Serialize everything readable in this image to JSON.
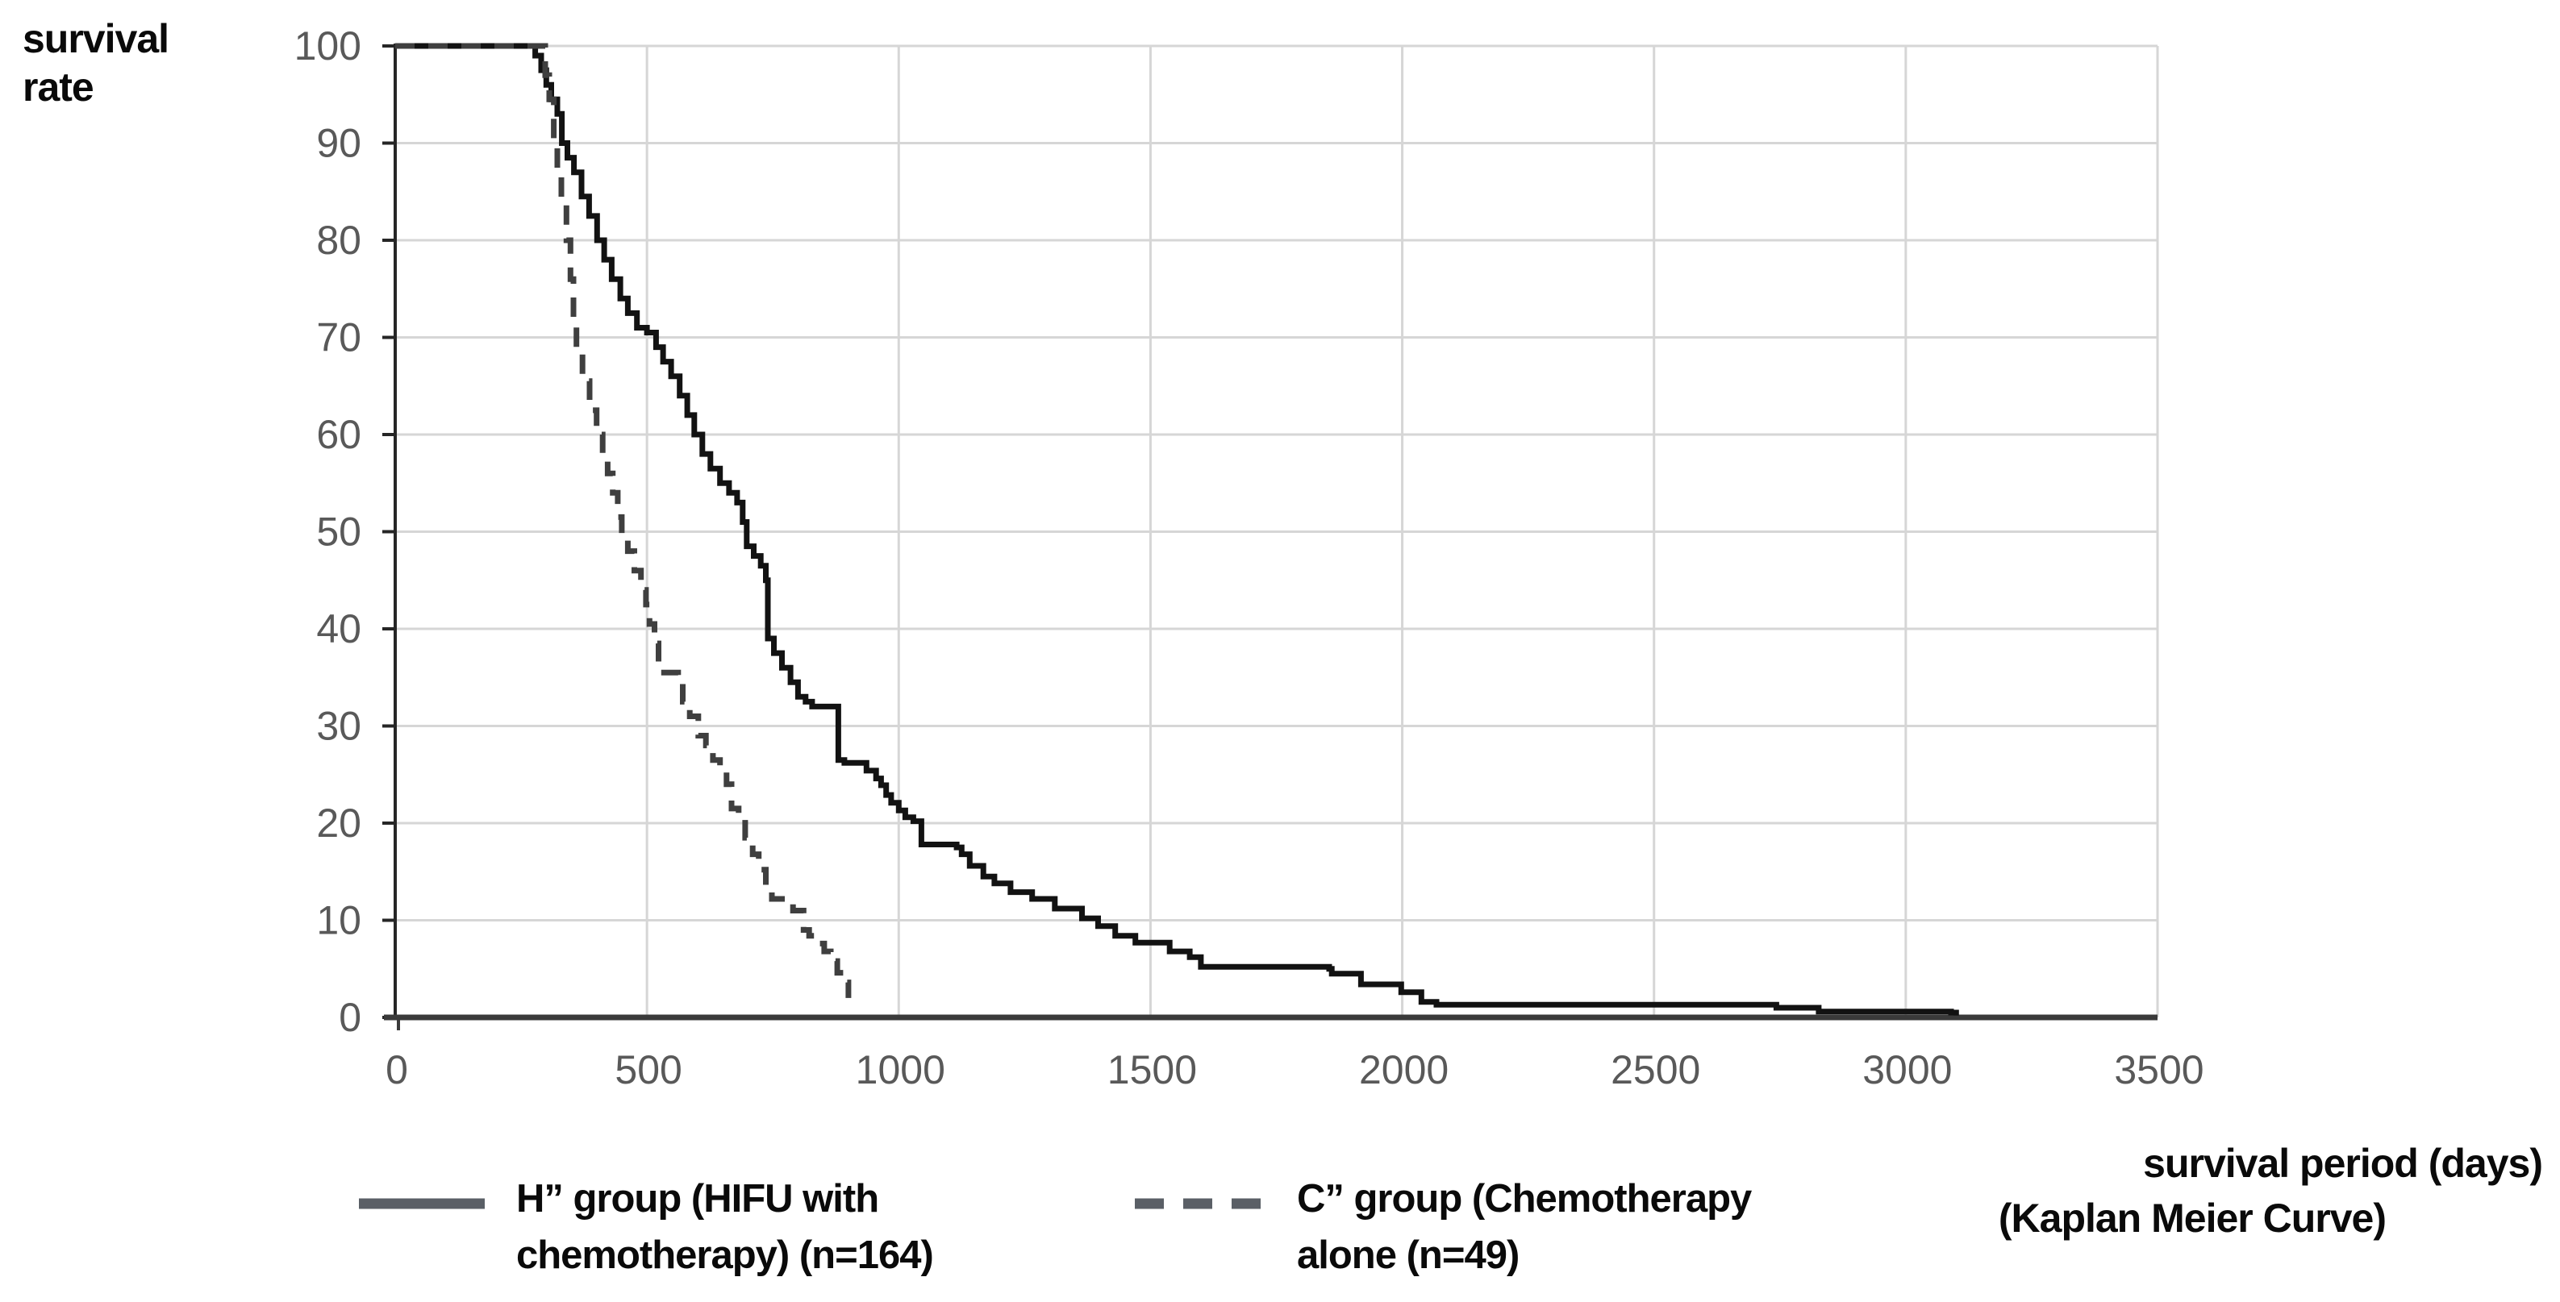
{
  "colors": {
    "background": "#ffffff",
    "grid": "#d6d6d6",
    "y_axis_line": "#262626",
    "x_axis_line": "#3a3a3a",
    "tick_label": "#595959",
    "text": "#0a0a0a",
    "legend_swatch": "#5a5f66"
  },
  "chart_data": {
    "type": "line",
    "subtype": "kaplan-meier-step",
    "title": "",
    "ylabel": "survival rate",
    "xlabel": "survival period (days)",
    "xlabel_sub": "(Kaplan Meier Curve)",
    "xlim": [
      0,
      3500
    ],
    "ylim": [
      0,
      100
    ],
    "x_ticks": [
      0,
      500,
      1000,
      1500,
      2000,
      2500,
      3000,
      3500
    ],
    "y_ticks": [
      0,
      10,
      20,
      30,
      40,
      50,
      60,
      70,
      80,
      90,
      100
    ],
    "grid": true,
    "legend_position": "bottom",
    "series": [
      {
        "name": "H” group (HIFU with chemotherapy) (n=164)",
        "legend_lines": [
          "H” group (HIFU with",
          "chemotherapy) (n=164)"
        ],
        "style": "solid",
        "color": "#121212",
        "stroke_width": 7,
        "points": [
          [
            0,
            100
          ],
          [
            270,
            100
          ],
          [
            278,
            99
          ],
          [
            290,
            97.5
          ],
          [
            300,
            96
          ],
          [
            310,
            94.5
          ],
          [
            322,
            93
          ],
          [
            331,
            90
          ],
          [
            342,
            88.5
          ],
          [
            355,
            87
          ],
          [
            370,
            84.5
          ],
          [
            385,
            82.5
          ],
          [
            401,
            80
          ],
          [
            415,
            78
          ],
          [
            430,
            76
          ],
          [
            447,
            74
          ],
          [
            462,
            72.5
          ],
          [
            480,
            71
          ],
          [
            500,
            70.5
          ],
          [
            518,
            69
          ],
          [
            532,
            67.5
          ],
          [
            548,
            66
          ],
          [
            565,
            64
          ],
          [
            580,
            62
          ],
          [
            594,
            60
          ],
          [
            610,
            58
          ],
          [
            626,
            56.5
          ],
          [
            645,
            55
          ],
          [
            663,
            54
          ],
          [
            679,
            53
          ],
          [
            690,
            51
          ],
          [
            698,
            48.5
          ],
          [
            712,
            47.5
          ],
          [
            726,
            46.5
          ],
          [
            736,
            45
          ],
          [
            740,
            39
          ],
          [
            752,
            37.5
          ],
          [
            768,
            36
          ],
          [
            785,
            34.5
          ],
          [
            800,
            33
          ],
          [
            815,
            32.5
          ],
          [
            828,
            32
          ],
          [
            880,
            26.5
          ],
          [
            892,
            26.2
          ],
          [
            936,
            25.4
          ],
          [
            955,
            24.6
          ],
          [
            965,
            23.9
          ],
          [
            975,
            22.9
          ],
          [
            985,
            22.1
          ],
          [
            1000,
            21.3
          ],
          [
            1013,
            20.6
          ],
          [
            1029,
            20.2
          ],
          [
            1045,
            17.8
          ],
          [
            1115,
            17.5
          ],
          [
            1125,
            16.8
          ],
          [
            1141,
            15.6
          ],
          [
            1168,
            14.5
          ],
          [
            1190,
            13.8
          ],
          [
            1222,
            12.9
          ],
          [
            1265,
            12.2
          ],
          [
            1310,
            11.2
          ],
          [
            1364,
            10.2
          ],
          [
            1396,
            9.4
          ],
          [
            1430,
            8.4
          ],
          [
            1470,
            7.7
          ],
          [
            1538,
            6.8
          ],
          [
            1578,
            6.2
          ],
          [
            1600,
            5.2
          ],
          [
            1855,
            5
          ],
          [
            1860,
            4.5
          ],
          [
            1918,
            3.4
          ],
          [
            1998,
            2.6
          ],
          [
            2038,
            1.6
          ],
          [
            2068,
            1.3
          ],
          [
            2743,
            1
          ],
          [
            2827,
            0.6
          ],
          [
            3090,
            0.5
          ],
          [
            3100,
            0.2
          ]
        ]
      },
      {
        "name": "C” group (Chemotherapy alone (n=49)",
        "legend_lines": [
          "C” group (Chemotherapy",
          "alone (n=49)"
        ],
        "style": "dashed",
        "color": "#3f3f3f",
        "stroke_width": 7,
        "dash_pattern": [
          24,
          17
        ],
        "points": [
          [
            0,
            100
          ],
          [
            290,
            100
          ],
          [
            298,
            97
          ],
          [
            306,
            94.5
          ],
          [
            315,
            90.5
          ],
          [
            322,
            87
          ],
          [
            330,
            84
          ],
          [
            340,
            80
          ],
          [
            348,
            76
          ],
          [
            354,
            72
          ],
          [
            360,
            68.5
          ],
          [
            372,
            65.5
          ],
          [
            386,
            62.5
          ],
          [
            400,
            60
          ],
          [
            412,
            58
          ],
          [
            422,
            56
          ],
          [
            432,
            54
          ],
          [
            442,
            51.5
          ],
          [
            450,
            49.5
          ],
          [
            462,
            48
          ],
          [
            475,
            46
          ],
          [
            488,
            44
          ],
          [
            498,
            42.5
          ],
          [
            505,
            40.5
          ],
          [
            515,
            38.5
          ],
          [
            523,
            35.5
          ],
          [
            562,
            34.5
          ],
          [
            571,
            32.5
          ],
          [
            585,
            31
          ],
          [
            602,
            29
          ],
          [
            617,
            28
          ],
          [
            631,
            26.5
          ],
          [
            645,
            25.5
          ],
          [
            658,
            24
          ],
          [
            668,
            21.5
          ],
          [
            682,
            20.5
          ],
          [
            695,
            18.5
          ],
          [
            710,
            16.8
          ],
          [
            722,
            15.2
          ],
          [
            736,
            13.5
          ],
          [
            748,
            12.2
          ],
          [
            790,
            11
          ],
          [
            811,
            9
          ],
          [
            822,
            8.4
          ],
          [
            838,
            7.6
          ],
          [
            852,
            6.8
          ],
          [
            865,
            5.8
          ],
          [
            878,
            4.6
          ],
          [
            890,
            3.6
          ],
          [
            900,
            2
          ]
        ]
      }
    ]
  }
}
